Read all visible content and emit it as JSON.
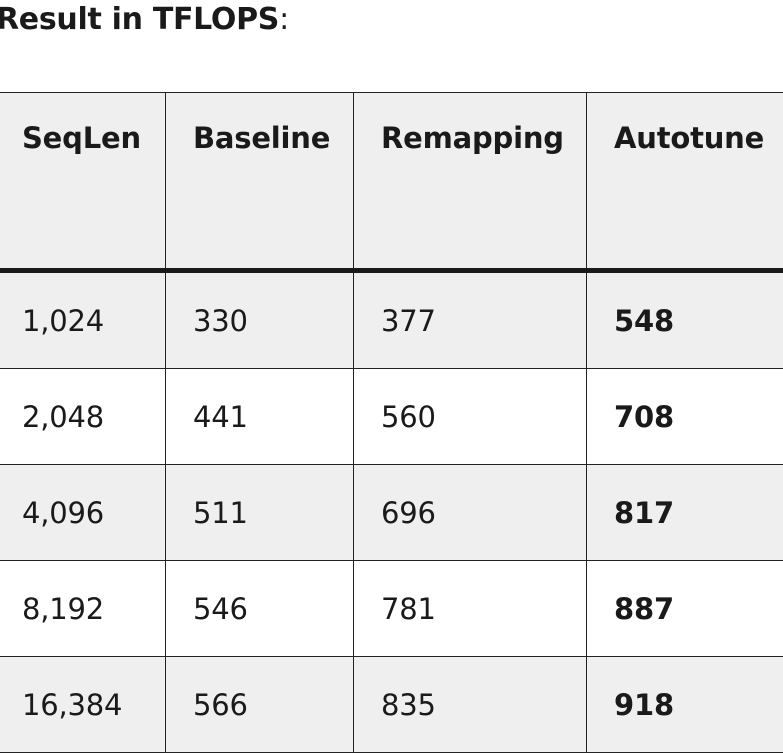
{
  "title": {
    "bold": "Result in TFLOPS",
    "suffix": ":"
  },
  "table": {
    "headers": [
      "SeqLen",
      "Baseline",
      "Remapping",
      "Autotune"
    ],
    "rows": [
      [
        "1,024",
        "330",
        "377",
        "548"
      ],
      [
        "2,048",
        "441",
        "560",
        "708"
      ],
      [
        "4,096",
        "511",
        "696",
        "817"
      ],
      [
        "8,192",
        "546",
        "781",
        "887"
      ],
      [
        "16,384",
        "566",
        "835",
        "918"
      ]
    ]
  }
}
